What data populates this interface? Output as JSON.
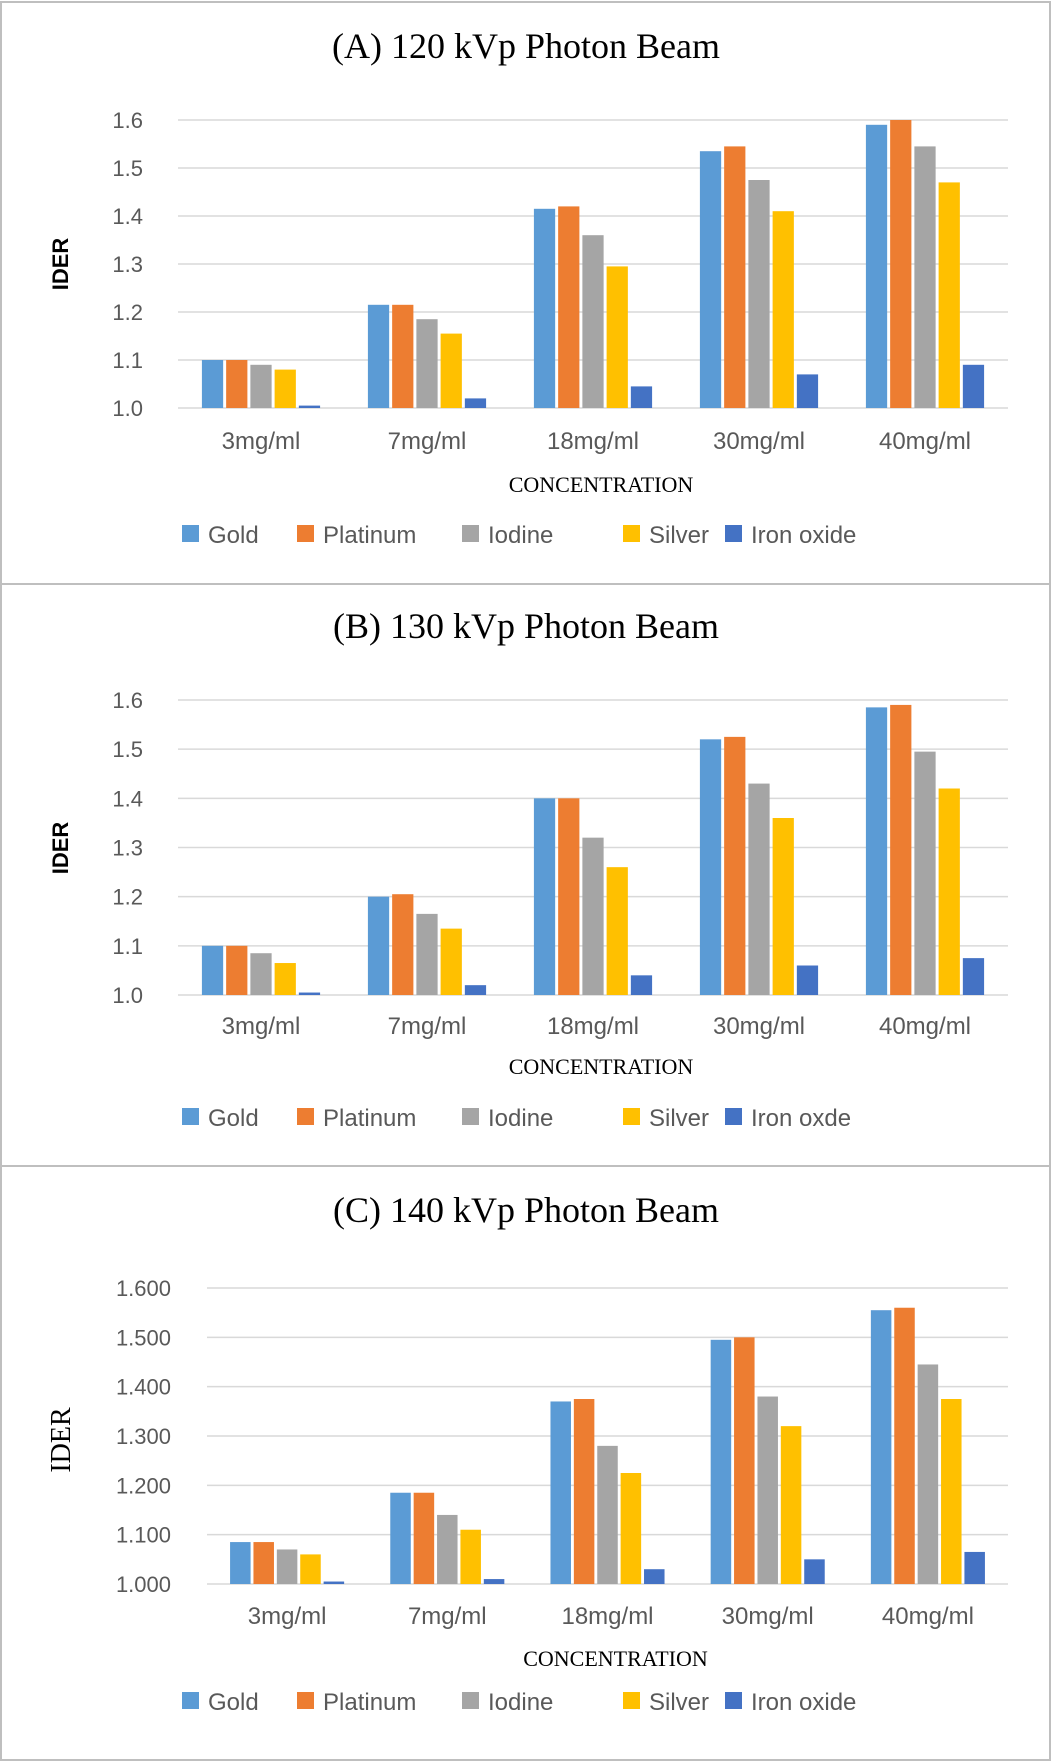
{
  "chart_data": [
    {
      "type": "bar",
      "title": "(A) 120 kVp Photon Beam",
      "xlabel": "CONCENTRATION",
      "ylabel": "IDER",
      "ylim": [
        1.0,
        1.6
      ],
      "yticks": [
        "1.0",
        "1.1",
        "1.2",
        "1.3",
        "1.4",
        "1.5",
        "1.6"
      ],
      "categories": [
        "3mg/ml",
        "7mg/ml",
        "18mg/ml",
        "30mg/ml",
        "40mg/ml"
      ],
      "legend_position": "bottom",
      "series": [
        {
          "name": "Gold",
          "color": "#5b9bd5",
          "values": [
            1.1,
            1.215,
            1.415,
            1.535,
            1.59
          ]
        },
        {
          "name": "Platinum",
          "color": "#ed7d31",
          "values": [
            1.1,
            1.215,
            1.42,
            1.545,
            1.6
          ]
        },
        {
          "name": "Iodine",
          "color": "#a5a5a5",
          "values": [
            1.09,
            1.185,
            1.36,
            1.475,
            1.545
          ]
        },
        {
          "name": "Silver",
          "color": "#ffc000",
          "values": [
            1.08,
            1.155,
            1.295,
            1.41,
            1.47
          ]
        },
        {
          "name": "Iron oxide",
          "color": "#4472c4",
          "values": [
            1.005,
            1.02,
            1.045,
            1.07,
            1.09
          ]
        }
      ]
    },
    {
      "type": "bar",
      "title": "(B) 130 kVp Photon Beam",
      "xlabel": "CONCENTRATION",
      "ylabel": "IDER",
      "ylim": [
        1.0,
        1.6
      ],
      "yticks": [
        "1.0",
        "1.1",
        "1.2",
        "1.3",
        "1.4",
        "1.5",
        "1.6"
      ],
      "categories": [
        "3mg/ml",
        "7mg/ml",
        "18mg/ml",
        "30mg/ml",
        "40mg/ml"
      ],
      "legend_position": "bottom",
      "series": [
        {
          "name": "Gold",
          "color": "#5b9bd5",
          "values": [
            1.1,
            1.2,
            1.4,
            1.52,
            1.585
          ]
        },
        {
          "name": "Platinum",
          "color": "#ed7d31",
          "values": [
            1.1,
            1.205,
            1.4,
            1.525,
            1.59
          ]
        },
        {
          "name": "Iodine",
          "color": "#a5a5a5",
          "values": [
            1.085,
            1.165,
            1.32,
            1.43,
            1.495
          ]
        },
        {
          "name": "Silver",
          "color": "#ffc000",
          "values": [
            1.065,
            1.135,
            1.26,
            1.36,
            1.42
          ]
        },
        {
          "name": "Iron oxde",
          "color": "#4472c4",
          "values": [
            1.005,
            1.02,
            1.04,
            1.06,
            1.075
          ]
        }
      ]
    },
    {
      "type": "bar",
      "title": "(C) 140 kVp Photon Beam",
      "xlabel": "CONCENTRATION",
      "ylabel": "IDER",
      "ylim": [
        1.0,
        1.6
      ],
      "yticks": [
        "1.000",
        "1.100",
        "1.200",
        "1.300",
        "1.400",
        "1.500",
        "1.600"
      ],
      "categories": [
        "3mg/ml",
        "7mg/ml",
        "18mg/ml",
        "30mg/ml",
        "40mg/ml"
      ],
      "legend_position": "bottom",
      "series": [
        {
          "name": "Gold",
          "color": "#5b9bd5",
          "values": [
            1.085,
            1.185,
            1.37,
            1.495,
            1.555
          ]
        },
        {
          "name": "Platinum",
          "color": "#ed7d31",
          "values": [
            1.085,
            1.185,
            1.375,
            1.5,
            1.56
          ]
        },
        {
          "name": "Iodine",
          "color": "#a5a5a5",
          "values": [
            1.07,
            1.14,
            1.28,
            1.38,
            1.445
          ]
        },
        {
          "name": "Silver",
          "color": "#ffc000",
          "values": [
            1.06,
            1.11,
            1.225,
            1.32,
            1.375
          ]
        },
        {
          "name": "Iron oxide",
          "color": "#4472c4",
          "values": [
            1.005,
            1.01,
            1.03,
            1.05,
            1.065
          ]
        }
      ]
    }
  ]
}
